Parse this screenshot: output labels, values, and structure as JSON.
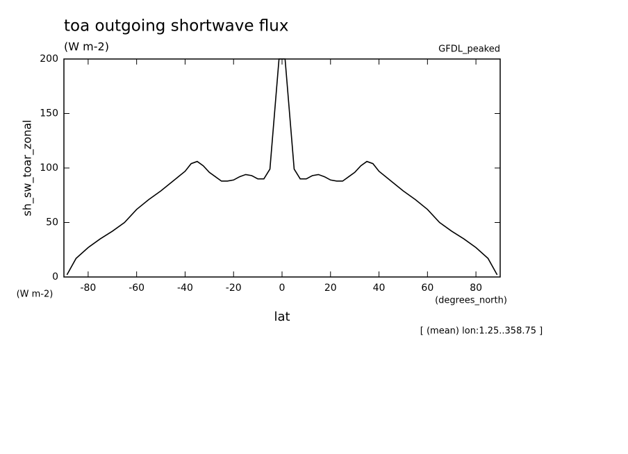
{
  "chart_data": {
    "type": "line",
    "title": "toa outgoing shortwave flux",
    "subtitle": "(W m-2)",
    "dataset": "GFDL_peaked",
    "y_label": "sh_sw_toar_zonal",
    "y_unit": "(W m-2)",
    "x_label": "lat",
    "x_unit": "(degrees_north)",
    "note": "[ (mean) lon:1.25..358.75 ]",
    "color": "#000000",
    "xlim": [
      -90,
      90
    ],
    "xticks": [
      -80,
      -60,
      -40,
      -20,
      0,
      20,
      40,
      60,
      80
    ],
    "ylim": [
      0,
      200
    ],
    "yticks": [
      0,
      50,
      100,
      150,
      200
    ],
    "x": [
      -88.75,
      -85,
      -80,
      -75,
      -70,
      -65,
      -60,
      -55,
      -50,
      -45,
      -40,
      -37.5,
      -35,
      -32.5,
      -30,
      -27.5,
      -25,
      -22.5,
      -20,
      -17.5,
      -15,
      -12.5,
      -10,
      -7.5,
      -5,
      -1.25,
      1.25,
      5,
      7.5,
      10,
      12.5,
      15,
      17.5,
      20,
      22.5,
      25,
      27.5,
      30,
      32.5,
      35,
      37.5,
      40,
      45,
      50,
      55,
      60,
      65,
      70,
      75,
      80,
      85,
      88.75
    ],
    "series": [
      {
        "values": [
          2,
          17,
          27,
          35,
          42,
          50,
          62,
          71,
          79,
          88,
          97,
          104,
          106,
          102,
          96,
          92,
          88,
          88,
          89,
          92,
          94,
          93,
          90,
          90,
          99,
          200,
          200,
          99,
          90,
          90,
          93,
          94,
          92,
          89,
          88,
          88,
          92,
          96,
          102,
          106,
          104,
          97,
          88,
          79,
          71,
          62,
          50,
          42,
          35,
          27,
          17,
          2
        ]
      }
    ]
  }
}
